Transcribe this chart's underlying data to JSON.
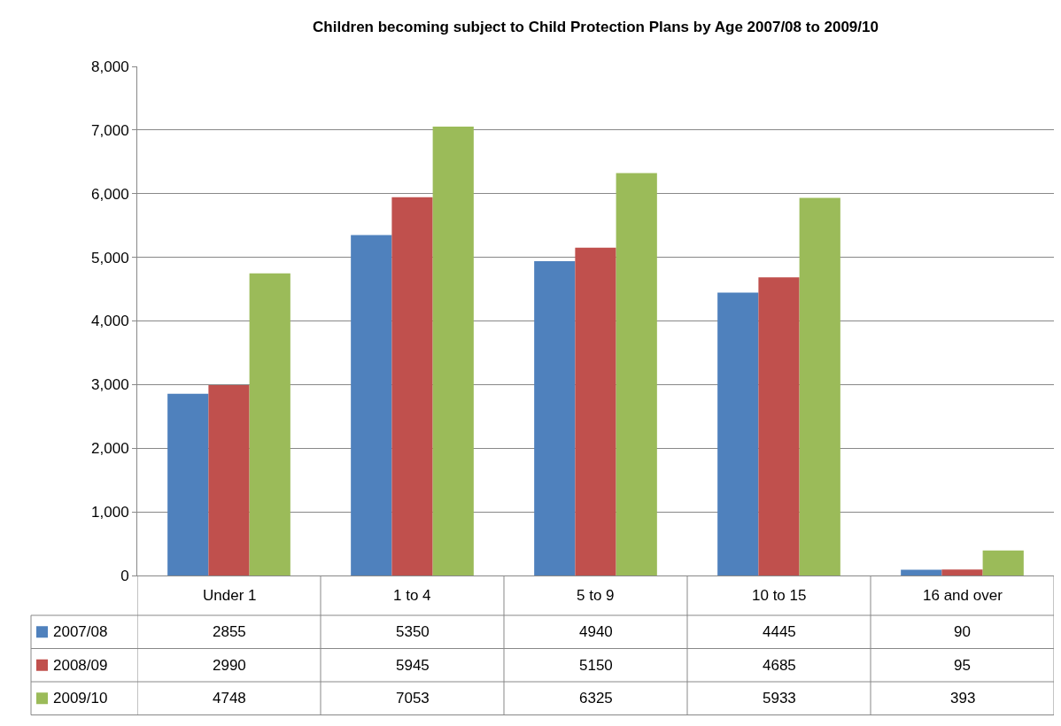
{
  "chart_data": {
    "type": "bar",
    "title": "Children becoming subject to Child Protection Plans by Age 2007/08 to 2009/10",
    "categories": [
      "Under 1",
      "1 to 4",
      "5 to 9",
      "10 to 15",
      "16 and over"
    ],
    "series": [
      {
        "name": "2007/08",
        "color": "#4f81bd",
        "values": [
          2855,
          5350,
          4940,
          4445,
          90
        ]
      },
      {
        "name": "2008/09",
        "color": "#c0504d",
        "values": [
          2990,
          5945,
          5150,
          4685,
          95
        ]
      },
      {
        "name": "2009/10",
        "color": "#9bbb59",
        "values": [
          4748,
          7053,
          6325,
          5933,
          393
        ]
      }
    ],
    "ylim": [
      0,
      8000
    ],
    "yticks": [
      {
        "value": 0,
        "label": "0"
      },
      {
        "value": 1000,
        "label": "1,000"
      },
      {
        "value": 2000,
        "label": "2,000"
      },
      {
        "value": 3000,
        "label": "3,000"
      },
      {
        "value": 4000,
        "label": "4,000"
      },
      {
        "value": 5000,
        "label": "5,000"
      },
      {
        "value": 6000,
        "label": "6,000"
      },
      {
        "value": 7000,
        "label": "7,000"
      },
      {
        "value": 8000,
        "label": "8,000"
      }
    ],
    "grid": "y",
    "data_labels": true,
    "legend": "bottom left"
  }
}
